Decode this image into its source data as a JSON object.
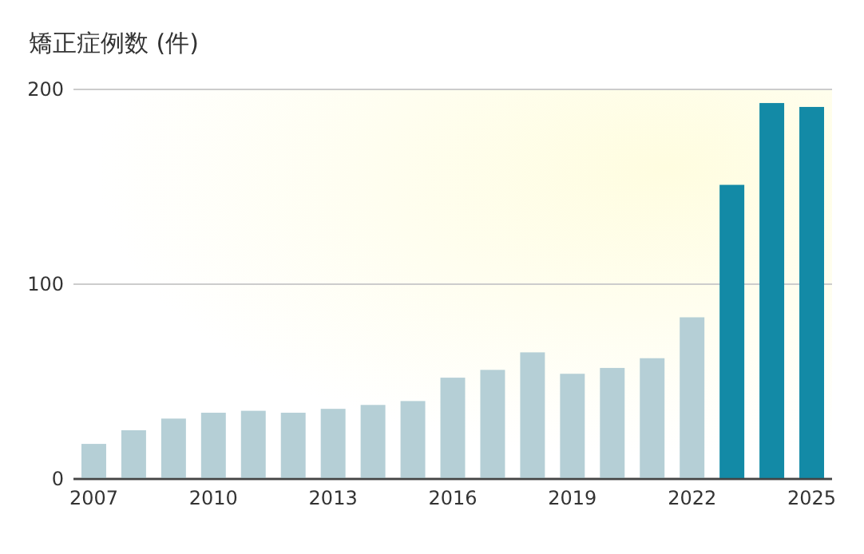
{
  "chart_data": {
    "type": "bar",
    "title": "矯正症例数 (件)",
    "categories": [
      "2007",
      null,
      null,
      "2010",
      null,
      null,
      "2013",
      null,
      null,
      "2016",
      null,
      null,
      "2019",
      null,
      null,
      "2022",
      null,
      null,
      "2025"
    ],
    "values": [
      18,
      25,
      31,
      34,
      35,
      34,
      36,
      38,
      40,
      52,
      56,
      65,
      54,
      57,
      62,
      83,
      151,
      193,
      191
    ],
    "colors": [
      "#b5cfd6",
      "#b5cfd6",
      "#b5cfd6",
      "#b5cfd6",
      "#b5cfd6",
      "#b5cfd6",
      "#b5cfd6",
      "#b5cfd6",
      "#b5cfd6",
      "#b5cfd6",
      "#b5cfd6",
      "#b5cfd6",
      "#b5cfd6",
      "#b5cfd6",
      "#b5cfd6",
      "#b5cfd6",
      "#138aa6",
      "#138aa6",
      "#138aa6"
    ],
    "ylim": [
      0,
      200
    ],
    "yticks": [
      0,
      100,
      200
    ],
    "grid": "y"
  }
}
